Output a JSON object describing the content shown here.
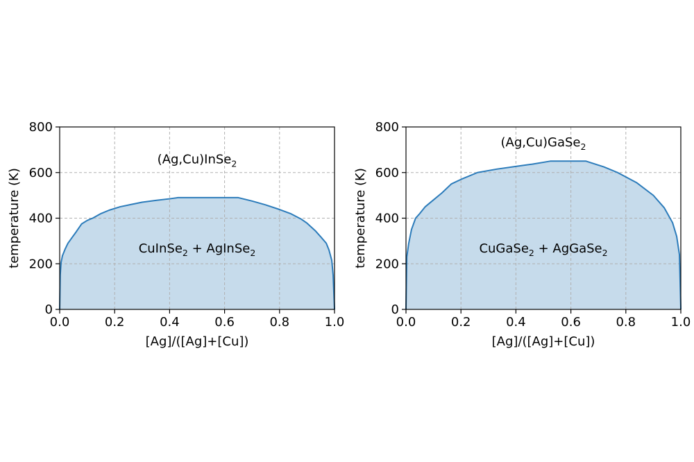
{
  "chart_data": [
    {
      "type": "area",
      "xlabel": "[Ag]/([Ag]+[Cu])",
      "ylabel": "temperature (K)",
      "xlim": [
        0,
        1
      ],
      "ylim": [
        0,
        800
      ],
      "xticks": [
        "0.0",
        "0.2",
        "0.4",
        "0.6",
        "0.8",
        "1.0"
      ],
      "yticks": [
        "0",
        "200",
        "400",
        "600",
        "800"
      ],
      "grid": true,
      "line_color": "#2b7bba",
      "fill_color": "#c6dbeb",
      "grid_color": "#b0b0b0",
      "annotations": [
        {
          "base": "(Ag,Cu)InSe",
          "sub": "2",
          "tail": "",
          "x": 0.5,
          "y": 640
        },
        {
          "base": "CuInSe",
          "sub": "2",
          "tail": " + AgInSe",
          "sub2": "2",
          "x": 0.5,
          "y": 250
        }
      ],
      "x": [
        0.0,
        0.002,
        0.005,
        0.01,
        0.02,
        0.03,
        0.045,
        0.06,
        0.08,
        0.1,
        0.12,
        0.15,
        0.18,
        0.22,
        0.26,
        0.3,
        0.35,
        0.4,
        0.43,
        0.5,
        0.55,
        0.6,
        0.65,
        0.7,
        0.75,
        0.8,
        0.84,
        0.88,
        0.9,
        0.93,
        0.95,
        0.97,
        0.98,
        0.99,
        0.995,
        1.0
      ],
      "y": [
        0,
        150,
        205,
        235,
        265,
        290,
        315,
        340,
        375,
        390,
        400,
        420,
        435,
        450,
        460,
        470,
        478,
        485,
        490,
        490,
        490,
        490,
        490,
        475,
        458,
        438,
        420,
        395,
        378,
        345,
        318,
        290,
        260,
        215,
        150,
        0
      ]
    },
    {
      "type": "area",
      "xlabel": "[Ag]/([Ag]+[Cu])",
      "ylabel": "temperature (K)",
      "xlim": [
        0,
        1
      ],
      "ylim": [
        0,
        800
      ],
      "xticks": [
        "0.0",
        "0.2",
        "0.4",
        "0.6",
        "0.8",
        "1.0"
      ],
      "yticks": [
        "0",
        "200",
        "400",
        "600",
        "800"
      ],
      "grid": true,
      "line_color": "#2b7bba",
      "fill_color": "#c6dbeb",
      "grid_color": "#b0b0b0",
      "annotations": [
        {
          "base": "(Ag,Cu)GaSe",
          "sub": "2",
          "tail": "",
          "x": 0.5,
          "y": 715
        },
        {
          "base": "CuGaSe",
          "sub": "2",
          "tail": " + AgGaSe",
          "sub2": "2",
          "x": 0.5,
          "y": 250
        }
      ],
      "x": [
        0.0,
        0.003,
        0.01,
        0.02,
        0.035,
        0.05,
        0.07,
        0.1,
        0.13,
        0.165,
        0.2,
        0.26,
        0.33,
        0.4,
        0.46,
        0.525,
        0.6,
        0.655,
        0.72,
        0.77,
        0.84,
        0.9,
        0.94,
        0.97,
        0.985,
        0.995,
        1.0
      ],
      "y": [
        0,
        230,
        290,
        350,
        400,
        420,
        450,
        480,
        510,
        550,
        570,
        600,
        615,
        627,
        637,
        650,
        650,
        650,
        625,
        600,
        555,
        500,
        445,
        380,
        320,
        240,
        0
      ]
    }
  ]
}
